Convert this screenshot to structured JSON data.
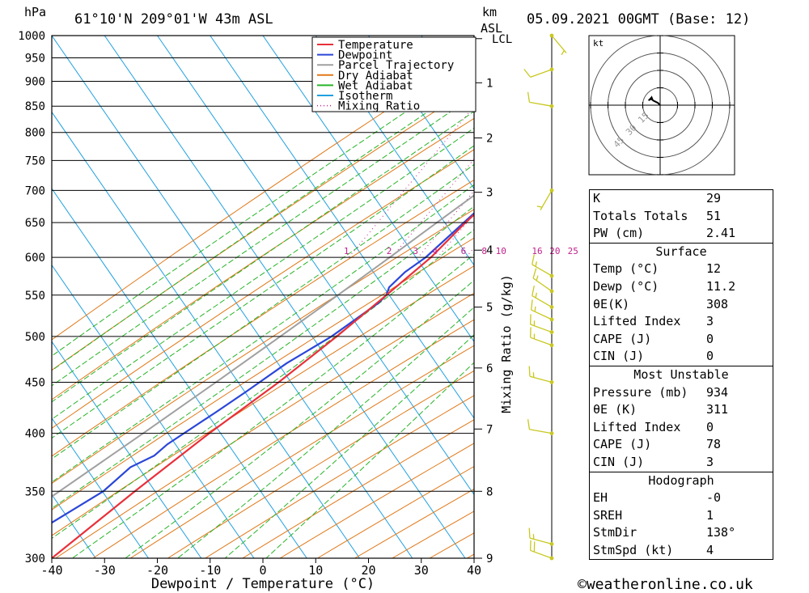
{
  "header": {
    "hpa_label": "hPa",
    "location": "61°10'N 209°01'W 43m ASL",
    "km_label": "km",
    "asl_label": "ASL",
    "datetime": "05.09.2021 00GMT (Base: 12)"
  },
  "legend": [
    {
      "name": "Temperature",
      "color": "#e8303a",
      "style": "solid"
    },
    {
      "name": "Dewpoint",
      "color": "#2a46d8",
      "style": "solid"
    },
    {
      "name": "Parcel Trajectory",
      "color": "#a0a0a0",
      "style": "solid"
    },
    {
      "name": "Dry Adiabat",
      "color": "#e07818",
      "style": "solid"
    },
    {
      "name": "Wet Adiabat",
      "color": "#28b428",
      "style": "solid"
    },
    {
      "name": "Isotherm",
      "color": "#20a0e0",
      "style": "solid"
    },
    {
      "name": "Mixing Ratio",
      "color": "#c0208c",
      "style": "dotted"
    }
  ],
  "chart_data": {
    "type": "line",
    "subtype": "skew-t log-p",
    "xlabel": "Dewpoint / Temperature (°C)",
    "ylabel": "hPa",
    "right_axis_label": "Mixing Ratio (g/kg)",
    "xlim": [
      -40,
      40
    ],
    "ylim": [
      1000,
      300
    ],
    "x_ticks": [
      "-40",
      "-30",
      "-20",
      "-10",
      "0",
      "10",
      "20",
      "30",
      "40"
    ],
    "pressure_levels": [
      300,
      350,
      400,
      450,
      500,
      550,
      600,
      650,
      700,
      750,
      800,
      850,
      900,
      950,
      1000
    ],
    "pressure_labels": [
      "300",
      "350",
      "400",
      "450",
      "500",
      "550",
      "600",
      "650",
      "700",
      "750",
      "800",
      "850",
      "900",
      "950",
      "1000"
    ],
    "km_ticks": [
      {
        "km": "9",
        "p": 300
      },
      {
        "km": "8",
        "p": 350
      },
      {
        "km": "7",
        "p": 404
      },
      {
        "km": "6",
        "p": 465
      },
      {
        "km": "5",
        "p": 535
      },
      {
        "km": "4",
        "p": 610
      },
      {
        "km": "3",
        "p": 697
      },
      {
        "km": "2",
        "p": 790
      },
      {
        "km": "1",
        "p": 897
      },
      {
        "km": "LCL",
        "p": 993
      }
    ],
    "mixing_ratio_labels": [
      "1",
      "2",
      "3",
      "4",
      "6",
      "8",
      "10",
      "16",
      "20",
      "25"
    ],
    "mixing_ratio_values": [
      1,
      2,
      3,
      4,
      6,
      8,
      10,
      16,
      20,
      25
    ],
    "series": [
      {
        "name": "Temperature",
        "color": "#e8303a",
        "points": [
          [
            1000,
            12
          ],
          [
            950,
            10.2
          ],
          [
            925,
            9.6
          ],
          [
            900,
            8
          ],
          [
            850,
            5
          ],
          [
            800,
            2
          ],
          [
            750,
            -1
          ],
          [
            700,
            -3.5
          ],
          [
            690,
            -3.6
          ],
          [
            670,
            -4.5
          ],
          [
            650,
            -5.5
          ],
          [
            600,
            -7.5
          ],
          [
            550,
            -11
          ],
          [
            500,
            -15
          ],
          [
            450,
            -20
          ],
          [
            430,
            -22.5
          ],
          [
            400,
            -26.5
          ],
          [
            350,
            -33
          ],
          [
            300,
            -40
          ]
        ]
      },
      {
        "name": "Dewpoint",
        "color": "#2a46d8",
        "points": [
          [
            1000,
            11.2
          ],
          [
            950,
            10.2
          ],
          [
            925,
            9.6
          ],
          [
            900,
            7
          ],
          [
            850,
            4.5
          ],
          [
            820,
            3
          ],
          [
            800,
            1.5
          ],
          [
            750,
            -1
          ],
          [
            700,
            -3.5
          ],
          [
            675,
            -4.5
          ],
          [
            670,
            -4.8
          ],
          [
            650,
            -5.8
          ],
          [
            600,
            -8.5
          ],
          [
            580,
            -10.5
          ],
          [
            560,
            -11.5
          ],
          [
            550,
            -11
          ],
          [
            540,
            -11.5
          ],
          [
            500,
            -16
          ],
          [
            470,
            -21
          ],
          [
            440,
            -25
          ],
          [
            420,
            -28
          ],
          [
            390,
            -33
          ],
          [
            380,
            -34
          ],
          [
            370,
            -37
          ],
          [
            350,
            -39
          ],
          [
            320,
            -46
          ],
          [
            300,
            -49
          ]
        ]
      },
      {
        "name": "Parcel Trajectory",
        "color": "#a0a0a0",
        "points": [
          [
            1000,
            12
          ],
          [
            950,
            9.4
          ],
          [
            900,
            6.6
          ],
          [
            850,
            3.6
          ],
          [
            800,
            0.4
          ],
          [
            750,
            -3.1
          ],
          [
            700,
            -6.8
          ],
          [
            650,
            -10.9
          ],
          [
            600,
            -15.3
          ],
          [
            550,
            -20.2
          ],
          [
            500,
            -25.7
          ],
          [
            450,
            -31.9
          ],
          [
            400,
            -39
          ],
          [
            350,
            -47.3
          ],
          [
            300,
            -57
          ]
        ]
      }
    ],
    "wind_barbs": [
      {
        "p": 300,
        "dir": 290,
        "spd": 20
      },
      {
        "p": 310,
        "dir": 285,
        "spd": 15
      },
      {
        "p": 400,
        "dir": 280,
        "spd": 10
      },
      {
        "p": 450,
        "dir": 285,
        "spd": 15
      },
      {
        "p": 490,
        "dir": 290,
        "spd": 15
      },
      {
        "p": 505,
        "dir": 290,
        "spd": 15
      },
      {
        "p": 520,
        "dir": 295,
        "spd": 15
      },
      {
        "p": 535,
        "dir": 300,
        "spd": 15
      },
      {
        "p": 555,
        "dir": 305,
        "spd": 15
      },
      {
        "p": 575,
        "dir": 300,
        "spd": 15
      },
      {
        "p": 700,
        "dir": 210,
        "spd": 5
      },
      {
        "p": 850,
        "dir": 280,
        "spd": 10
      },
      {
        "p": 925,
        "dir": 250,
        "spd": 10
      },
      {
        "p": 1000,
        "dir": 140,
        "spd": 5
      }
    ],
    "hodograph": {
      "unit_label": "kt",
      "ring_labels": [
        "15",
        "30",
        "45"
      ],
      "points": [
        [
          0,
          0
        ],
        [
          -1,
          1
        ],
        [
          -3,
          2
        ],
        [
          -4,
          3
        ],
        [
          -5,
          2
        ]
      ]
    }
  },
  "indices": {
    "general": [
      {
        "label": "K",
        "value": "29"
      },
      {
        "label": "Totals Totals",
        "value": "51"
      },
      {
        "label": "PW (cm)",
        "value": "2.41"
      }
    ],
    "surface_title": "Surface",
    "surface": [
      {
        "label": "Temp (°C)",
        "value": "12"
      },
      {
        "label": "Dewp (°C)",
        "value": "11.2"
      },
      {
        "label": "θE(K)",
        "value": "308"
      },
      {
        "label": "Lifted Index",
        "value": "3"
      },
      {
        "label": "CAPE (J)",
        "value": "0"
      },
      {
        "label": "CIN (J)",
        "value": "0"
      }
    ],
    "mu_title": "Most Unstable",
    "mu": [
      {
        "label": "Pressure (mb)",
        "value": "934"
      },
      {
        "label": "θE (K)",
        "value": "311"
      },
      {
        "label": "Lifted Index",
        "value": "0"
      },
      {
        "label": "CAPE (J)",
        "value": "78"
      },
      {
        "label": "CIN (J)",
        "value": "3"
      }
    ],
    "hodo_title": "Hodograph",
    "hodo": [
      {
        "label": "EH",
        "value": "-0"
      },
      {
        "label": "SREH",
        "value": "1"
      },
      {
        "label": "StmDir",
        "value": "138°"
      },
      {
        "label": "StmSpd (kt)",
        "value": "4"
      }
    ]
  },
  "footer": {
    "copyright": "©weatheronline.co.uk"
  }
}
